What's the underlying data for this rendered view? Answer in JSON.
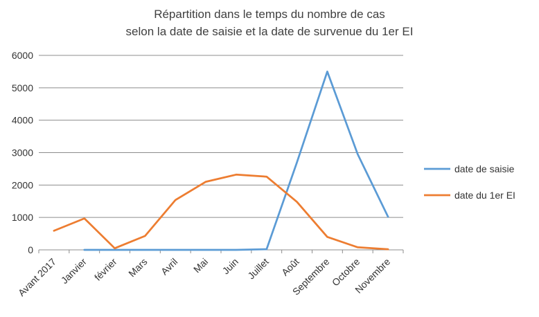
{
  "chart_data": {
    "type": "line",
    "title": "Répartition dans le temps du nombre de cas",
    "subtitle": "selon la date de saisie et la date de survenue du 1er EI",
    "xlabel": "",
    "ylabel": "",
    "categories": [
      "Avant 2017",
      "Janvier",
      "février",
      "Mars",
      "Avril",
      "Mai",
      "Juin",
      "Juillet",
      "Août",
      "Septembre",
      "Octobre",
      "Novembre"
    ],
    "ylim": [
      0,
      6000
    ],
    "yticks": [
      0,
      1000,
      2000,
      3000,
      4000,
      5000,
      6000
    ],
    "grid": true,
    "legend_position": "right",
    "series": [
      {
        "name": "date de saisie",
        "color": "#5b9bd5",
        "values": [
          null,
          0,
          0,
          0,
          0,
          0,
          0,
          20,
          2700,
          5500,
          2950,
          1020
        ]
      },
      {
        "name": "date du 1er EI",
        "color": "#ed7d31",
        "values": [
          590,
          970,
          50,
          430,
          1540,
          2100,
          2320,
          2260,
          1480,
          400,
          80,
          20
        ]
      }
    ]
  }
}
